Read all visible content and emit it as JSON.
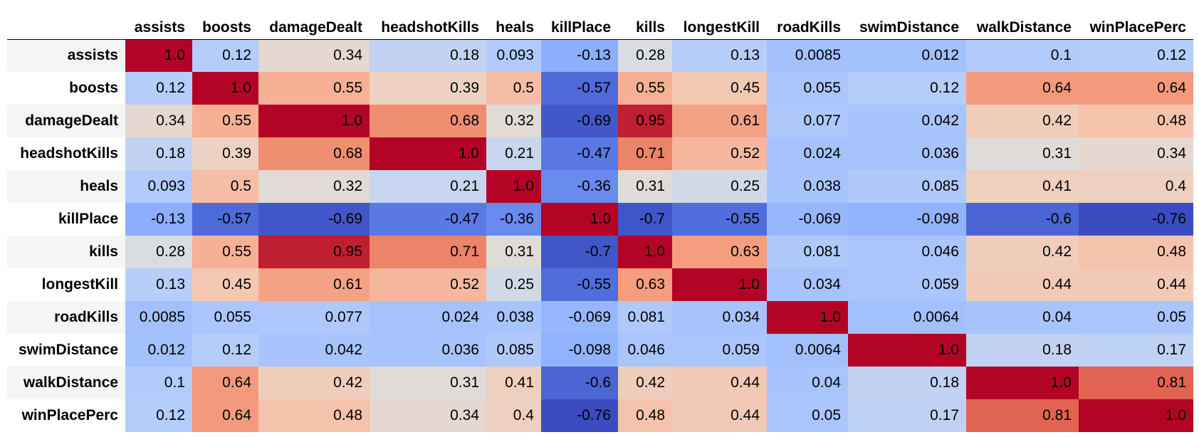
{
  "chart_data": {
    "type": "heatmap",
    "title": "",
    "colormap": "coolwarm",
    "vmin": -0.76,
    "vmax": 1.0,
    "columns": [
      "assists",
      "boosts",
      "damageDealt",
      "headshotKills",
      "heals",
      "killPlace",
      "kills",
      "longestKill",
      "roadKills",
      "swimDistance",
      "walkDistance",
      "winPlacePerc"
    ],
    "rows": [
      "assists",
      "boosts",
      "damageDealt",
      "headshotKills",
      "heals",
      "killPlace",
      "kills",
      "longestKill",
      "roadKills",
      "swimDistance",
      "walkDistance",
      "winPlacePerc"
    ],
    "values": [
      [
        "1.0",
        "0.12",
        "0.34",
        "0.18",
        "0.093",
        "-0.13",
        "0.28",
        "0.13",
        "0.0085",
        "0.012",
        "0.1",
        "0.12"
      ],
      [
        "0.12",
        "1.0",
        "0.55",
        "0.39",
        "0.5",
        "-0.57",
        "0.55",
        "0.45",
        "0.055",
        "0.12",
        "0.64",
        "0.64"
      ],
      [
        "0.34",
        "0.55",
        "1.0",
        "0.68",
        "0.32",
        "-0.69",
        "0.95",
        "0.61",
        "0.077",
        "0.042",
        "0.42",
        "0.48"
      ],
      [
        "0.18",
        "0.39",
        "0.68",
        "1.0",
        "0.21",
        "-0.47",
        "0.71",
        "0.52",
        "0.024",
        "0.036",
        "0.31",
        "0.34"
      ],
      [
        "0.093",
        "0.5",
        "0.32",
        "0.21",
        "1.0",
        "-0.36",
        "0.31",
        "0.25",
        "0.038",
        "0.085",
        "0.41",
        "0.4"
      ],
      [
        "-0.13",
        "-0.57",
        "-0.69",
        "-0.47",
        "-0.36",
        "1.0",
        "-0.7",
        "-0.55",
        "-0.069",
        "-0.098",
        "-0.6",
        "-0.76"
      ],
      [
        "0.28",
        "0.55",
        "0.95",
        "0.71",
        "0.31",
        "-0.7",
        "1.0",
        "0.63",
        "0.081",
        "0.046",
        "0.42",
        "0.48"
      ],
      [
        "0.13",
        "0.45",
        "0.61",
        "0.52",
        "0.25",
        "-0.55",
        "0.63",
        "1.0",
        "0.034",
        "0.059",
        "0.44",
        "0.44"
      ],
      [
        "0.0085",
        "0.055",
        "0.077",
        "0.024",
        "0.038",
        "-0.069",
        "0.081",
        "0.034",
        "1.0",
        "0.0064",
        "0.04",
        "0.05"
      ],
      [
        "0.012",
        "0.12",
        "0.042",
        "0.036",
        "0.085",
        "-0.098",
        "0.046",
        "0.059",
        "0.0064",
        "1.0",
        "0.18",
        "0.17"
      ],
      [
        "0.1",
        "0.64",
        "0.42",
        "0.31",
        "0.41",
        "-0.6",
        "0.42",
        "0.44",
        "0.04",
        "0.18",
        "1.0",
        "0.81"
      ],
      [
        "0.12",
        "0.64",
        "0.48",
        "0.34",
        "0.4",
        "-0.76",
        "0.48",
        "0.44",
        "0.05",
        "0.17",
        "0.81",
        "1.0"
      ]
    ]
  }
}
